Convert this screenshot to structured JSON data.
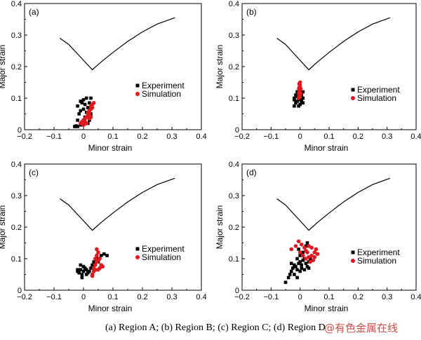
{
  "caption": {
    "text": "(a) Region A; (b) Region B; (c) Region C; (d) Region D",
    "watermark": "@有色金属在线"
  },
  "colors": {
    "experiment": "#000000",
    "simulation": "#e0191e",
    "curve": "#000000"
  },
  "chart_data": [
    {
      "type": "scatter",
      "panel_label": "(a)",
      "xlabel": "Minor strain",
      "ylabel": "Major strain",
      "xlim": [
        -0.2,
        0.4
      ],
      "ylim": [
        0,
        0.4
      ],
      "xticks": [
        "−0.2",
        "−0.1",
        "0",
        "0.1",
        "0.2",
        "0.3",
        "0.4"
      ],
      "yticks": [
        "0",
        "0.1",
        "0.2",
        "0.3",
        "0.4"
      ],
      "legend": [
        "Experiment",
        "Simulation"
      ],
      "legend_position": "right",
      "forming_limit_curve": [
        [
          -0.08,
          0.29
        ],
        [
          -0.05,
          0.27
        ],
        [
          -0.02,
          0.24
        ],
        [
          0.0,
          0.22
        ],
        [
          0.015,
          0.205
        ],
        [
          0.03,
          0.19
        ],
        [
          0.06,
          0.215
        ],
        [
          0.1,
          0.245
        ],
        [
          0.15,
          0.28
        ],
        [
          0.2,
          0.31
        ],
        [
          0.25,
          0.335
        ],
        [
          0.31,
          0.355
        ]
      ],
      "series": [
        {
          "name": "Experiment",
          "marker": "square",
          "points": [
            [
              -0.03,
              0.01
            ],
            [
              -0.025,
              0.012
            ],
            [
              -0.02,
              0.01
            ],
            [
              -0.01,
              0.015
            ],
            [
              -0.02,
              0.03
            ],
            [
              -0.015,
              0.05
            ],
            [
              -0.01,
              0.06
            ],
            [
              -0.02,
              0.075
            ],
            [
              -0.01,
              0.09
            ],
            [
              -0.005,
              0.085
            ],
            [
              0.0,
              0.095
            ],
            [
              0.005,
              0.08
            ],
            [
              0.01,
              0.1
            ],
            [
              0.015,
              0.07
            ],
            [
              0.02,
              0.085
            ],
            [
              0.025,
              0.1
            ],
            [
              0.0,
              0.065
            ],
            [
              0.01,
              0.055
            ],
            [
              0.005,
              0.04
            ],
            [
              -0.005,
              0.025
            ],
            [
              0.015,
              0.02
            ],
            [
              0.02,
              0.03
            ],
            [
              0.025,
              0.05
            ]
          ]
        },
        {
          "name": "Simulation",
          "marker": "circle",
          "points": [
            [
              -0.01,
              0.02
            ],
            [
              -0.005,
              0.025
            ],
            [
              0.0,
              0.03
            ],
            [
              0.005,
              0.035
            ],
            [
              0.01,
              0.04
            ],
            [
              0.015,
              0.045
            ],
            [
              0.02,
              0.05
            ],
            [
              0.015,
              0.055
            ],
            [
              0.02,
              0.06
            ],
            [
              0.025,
              0.065
            ],
            [
              0.03,
              0.07
            ],
            [
              0.025,
              0.075
            ],
            [
              0.03,
              0.08
            ],
            [
              0.035,
              0.085
            ],
            [
              0.01,
              0.02
            ],
            [
              0.0,
              0.015
            ],
            [
              0.005,
              0.025
            ],
            [
              0.02,
              0.035
            ],
            [
              0.025,
              0.04
            ]
          ]
        }
      ]
    },
    {
      "type": "scatter",
      "panel_label": "(b)",
      "xlabel": "Minor strain",
      "ylabel": "Major strain",
      "xlim": [
        -0.2,
        0.4
      ],
      "ylim": [
        0,
        0.4
      ],
      "xticks": [
        "−0.2",
        "−0.1",
        "0",
        "0.1",
        "0.2",
        "0.3",
        "0.4"
      ],
      "yticks": [
        "0",
        "0.1",
        "0.2",
        "0.3",
        "0.4"
      ],
      "legend": [
        "Experiment",
        "Simulation"
      ],
      "legend_position": "right",
      "forming_limit_curve": [
        [
          -0.08,
          0.29
        ],
        [
          -0.05,
          0.27
        ],
        [
          -0.02,
          0.24
        ],
        [
          0.0,
          0.22
        ],
        [
          0.015,
          0.205
        ],
        [
          0.03,
          0.19
        ],
        [
          0.06,
          0.215
        ],
        [
          0.1,
          0.245
        ],
        [
          0.15,
          0.28
        ],
        [
          0.2,
          0.31
        ],
        [
          0.25,
          0.335
        ],
        [
          0.31,
          0.355
        ]
      ],
      "series": [
        {
          "name": "Experiment",
          "marker": "square",
          "points": [
            [
              -0.02,
              0.075
            ],
            [
              -0.015,
              0.085
            ],
            [
              -0.01,
              0.09
            ],
            [
              -0.02,
              0.1
            ],
            [
              -0.015,
              0.11
            ],
            [
              -0.01,
              0.12
            ],
            [
              -0.005,
              0.1
            ],
            [
              0.0,
              0.095
            ],
            [
              0.005,
              0.09
            ],
            [
              0.01,
              0.085
            ],
            [
              0.0,
              0.08
            ],
            [
              -0.005,
              0.075
            ],
            [
              0.01,
              0.1
            ],
            [
              0.005,
              0.11
            ],
            [
              -0.02,
              0.095
            ],
            [
              0.01,
              0.12
            ],
            [
              -0.01,
              0.105
            ]
          ]
        },
        {
          "name": "Simulation",
          "marker": "circle",
          "points": [
            [
              -0.005,
              0.1
            ],
            [
              -0.003,
              0.105
            ],
            [
              0.0,
              0.11
            ],
            [
              -0.004,
              0.115
            ],
            [
              -0.002,
              0.12
            ],
            [
              0.0,
              0.125
            ],
            [
              -0.004,
              0.13
            ],
            [
              -0.002,
              0.135
            ],
            [
              0.0,
              0.14
            ],
            [
              -0.003,
              0.145
            ],
            [
              0.0,
              0.15
            ],
            [
              0.002,
              0.13
            ],
            [
              0.002,
              0.115
            ]
          ]
        }
      ]
    },
    {
      "type": "scatter",
      "panel_label": "(c)",
      "xlabel": "Minor strain",
      "ylabel": "Major strain",
      "xlim": [
        -0.2,
        0.4
      ],
      "ylim": [
        0,
        0.4
      ],
      "xticks": [
        "−0.2",
        "−0.1",
        "0",
        "0.1",
        "0.2",
        "0.3",
        "0.4"
      ],
      "yticks": [
        "0",
        "0.1",
        "0.2",
        "0.3",
        "0.4"
      ],
      "legend": [
        "Experiment",
        "Simulation"
      ],
      "legend_position": "right",
      "forming_limit_curve": [
        [
          -0.08,
          0.29
        ],
        [
          -0.05,
          0.27
        ],
        [
          -0.02,
          0.24
        ],
        [
          0.0,
          0.22
        ],
        [
          0.015,
          0.205
        ],
        [
          0.03,
          0.19
        ],
        [
          0.06,
          0.215
        ],
        [
          0.1,
          0.245
        ],
        [
          0.15,
          0.28
        ],
        [
          0.2,
          0.31
        ],
        [
          0.25,
          0.335
        ],
        [
          0.31,
          0.355
        ]
      ],
      "series": [
        {
          "name": "Experiment",
          "marker": "square",
          "points": [
            [
              -0.02,
              0.06
            ],
            [
              -0.015,
              0.055
            ],
            [
              -0.01,
              0.065
            ],
            [
              -0.005,
              0.05
            ],
            [
              0.0,
              0.06
            ],
            [
              0.005,
              0.07
            ],
            [
              0.01,
              0.065
            ],
            [
              0.015,
              0.055
            ],
            [
              0.02,
              0.06
            ],
            [
              0.0,
              0.075
            ],
            [
              -0.01,
              0.08
            ],
            [
              -0.005,
              0.04
            ],
            [
              0.01,
              0.05
            ],
            [
              0.025,
              0.07
            ],
            [
              0.03,
              0.08
            ],
            [
              0.035,
              0.09
            ],
            [
              0.04,
              0.085
            ],
            [
              0.05,
              0.1
            ],
            [
              0.06,
              0.11
            ],
            [
              0.07,
              0.115
            ],
            [
              0.08,
              0.11
            ],
            [
              0.05,
              0.09
            ],
            [
              -0.02,
              0.065
            ]
          ]
        },
        {
          "name": "Simulation",
          "marker": "circle",
          "points": [
            [
              0.03,
              0.05
            ],
            [
              0.035,
              0.07
            ],
            [
              0.04,
              0.08
            ],
            [
              0.045,
              0.09
            ],
            [
              0.05,
              0.095
            ],
            [
              0.055,
              0.1
            ],
            [
              0.045,
              0.11
            ],
            [
              0.05,
              0.12
            ],
            [
              0.045,
              0.13
            ],
            [
              0.04,
              0.1
            ],
            [
              0.035,
              0.06
            ],
            [
              0.06,
              0.08
            ],
            [
              0.065,
              0.075
            ],
            [
              0.055,
              0.07
            ],
            [
              0.05,
              0.065
            ],
            [
              0.03,
              0.045
            ],
            [
              0.04,
              0.065
            ]
          ]
        }
      ]
    },
    {
      "type": "scatter",
      "panel_label": "(d)",
      "xlabel": "Minor strain",
      "ylabel": "Major strain",
      "xlim": [
        -0.2,
        0.4
      ],
      "ylim": [
        0,
        0.4
      ],
      "xticks": [
        "−0.2",
        "−0.1",
        "0",
        "0.1",
        "0.2",
        "0.3",
        "0.4"
      ],
      "yticks": [
        "0",
        "0.1",
        "0.2",
        "0.3",
        "0.4"
      ],
      "legend": [
        "Experiment",
        "Simulation"
      ],
      "legend_position": "right",
      "forming_limit_curve": [
        [
          -0.08,
          0.29
        ],
        [
          -0.05,
          0.27
        ],
        [
          -0.02,
          0.24
        ],
        [
          0.0,
          0.22
        ],
        [
          0.015,
          0.205
        ],
        [
          0.03,
          0.19
        ],
        [
          0.06,
          0.215
        ],
        [
          0.1,
          0.245
        ],
        [
          0.15,
          0.28
        ],
        [
          0.2,
          0.31
        ],
        [
          0.25,
          0.335
        ],
        [
          0.31,
          0.355
        ]
      ],
      "series": [
        {
          "name": "Experiment",
          "marker": "square",
          "points": [
            [
              -0.05,
              0.025
            ],
            [
              -0.04,
              0.04
            ],
            [
              -0.035,
              0.05
            ],
            [
              -0.03,
              0.06
            ],
            [
              -0.025,
              0.07
            ],
            [
              -0.02,
              0.08
            ],
            [
              -0.015,
              0.075
            ],
            [
              -0.01,
              0.065
            ],
            [
              -0.005,
              0.085
            ],
            [
              0.0,
              0.09
            ],
            [
              0.005,
              0.08
            ],
            [
              0.01,
              0.095
            ],
            [
              0.015,
              0.1
            ],
            [
              0.02,
              0.085
            ],
            [
              0.025,
              0.075
            ],
            [
              0.03,
              0.07
            ],
            [
              -0.01,
              0.1
            ],
            [
              0.0,
              0.11
            ],
            [
              0.01,
              0.12
            ],
            [
              -0.005,
              0.13
            ],
            [
              0.02,
              0.14
            ],
            [
              0.025,
              0.15
            ],
            [
              -0.02,
              0.05
            ],
            [
              -0.01,
              0.04
            ],
            [
              0.0,
              0.06
            ],
            [
              0.03,
              0.09
            ],
            [
              0.035,
              0.1
            ],
            [
              -0.03,
              0.085
            ],
            [
              0.005,
              0.07
            ],
            [
              0.015,
              0.065
            ]
          ]
        },
        {
          "name": "Simulation",
          "marker": "circle",
          "points": [
            [
              -0.03,
              0.13
            ],
            [
              -0.015,
              0.14
            ],
            [
              -0.005,
              0.155
            ],
            [
              0.0,
              0.12
            ],
            [
              0.01,
              0.11
            ],
            [
              0.02,
              0.1
            ],
            [
              0.03,
              0.105
            ],
            [
              0.04,
              0.11
            ],
            [
              0.05,
              0.12
            ],
            [
              0.055,
              0.13
            ],
            [
              0.045,
              0.095
            ],
            [
              0.035,
              0.09
            ],
            [
              0.025,
              0.12
            ],
            [
              0.015,
              0.135
            ],
            [
              0.005,
              0.145
            ],
            [
              0.05,
              0.105
            ],
            [
              0.06,
              0.115
            ],
            [
              0.04,
              0.135
            ],
            [
              0.03,
              0.14
            ],
            [
              0.02,
              0.125
            ]
          ]
        }
      ]
    }
  ]
}
